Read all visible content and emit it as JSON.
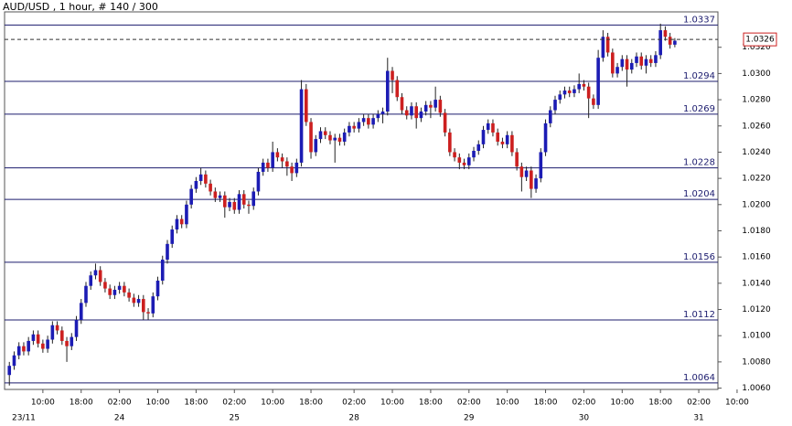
{
  "chart_data": {
    "type": "candlestick",
    "title": "AUD/USD , 1 hour, # 140 / 300",
    "up_color": "#1c1cb4",
    "down_color": "#cc1f1f",
    "level_color": "#1c1c6e",
    "last_color": "#cc1f1f",
    "xlim": [
      -1,
      148
    ],
    "ylim": [
      1.0059,
      1.0347
    ],
    "yticks": [
      {
        "value": 1.006,
        "label": "1.0060"
      },
      {
        "value": 1.008,
        "label": "1.0080"
      },
      {
        "value": 1.01,
        "label": "1.0100"
      },
      {
        "value": 1.012,
        "label": "1.0120"
      },
      {
        "value": 1.014,
        "label": "1.0140"
      },
      {
        "value": 1.016,
        "label": "1.0160"
      },
      {
        "value": 1.018,
        "label": "1.0180"
      },
      {
        "value": 1.02,
        "label": "1.0200"
      },
      {
        "value": 1.022,
        "label": "1.0220"
      },
      {
        "value": 1.024,
        "label": "1.0240"
      },
      {
        "value": 1.026,
        "label": "1.0260"
      },
      {
        "value": 1.028,
        "label": "1.0280"
      },
      {
        "value": 1.03,
        "label": "1.0300"
      },
      {
        "value": 1.032,
        "label": "1.0320"
      }
    ],
    "xticks": [
      {
        "value": 7,
        "label": "10:00"
      },
      {
        "value": 15,
        "label": "18:00"
      },
      {
        "value": 23,
        "label": "02:00"
      },
      {
        "value": 31,
        "label": "10:00"
      },
      {
        "value": 39,
        "label": "18:00"
      },
      {
        "value": 47,
        "label": "02:00"
      },
      {
        "value": 55,
        "label": "10:00"
      },
      {
        "value": 63,
        "label": "18:00"
      },
      {
        "value": 72,
        "label": "02:00"
      },
      {
        "value": 80,
        "label": "10:00"
      },
      {
        "value": 88,
        "label": "18:00"
      },
      {
        "value": 96,
        "label": "02:00"
      },
      {
        "value": 104,
        "label": "10:00"
      },
      {
        "value": 112,
        "label": "18:00"
      },
      {
        "value": 120,
        "label": "02:00"
      },
      {
        "value": 128,
        "label": "10:00"
      },
      {
        "value": 136,
        "label": "18:00"
      },
      {
        "value": 144,
        "label": "02:00"
      },
      {
        "value": 152,
        "label": "10:00"
      }
    ],
    "date_ticks": [
      {
        "value": 3,
        "label": "23/11"
      },
      {
        "value": 23,
        "label": "24"
      },
      {
        "value": 47,
        "label": "25"
      },
      {
        "value": 72,
        "label": "28"
      },
      {
        "value": 96,
        "label": "29"
      },
      {
        "value": 120,
        "label": "30"
      },
      {
        "value": 144,
        "label": "31"
      }
    ],
    "levels": [
      1.0337,
      1.0294,
      1.0269,
      1.0228,
      1.0204,
      1.0156,
      1.0112,
      1.0064
    ],
    "last_price": 1.0326,
    "x": [
      0,
      1,
      2,
      3,
      4,
      5,
      6,
      7,
      8,
      9,
      10,
      11,
      12,
      13,
      14,
      15,
      16,
      17,
      18,
      19,
      20,
      21,
      22,
      23,
      24,
      25,
      26,
      27,
      28,
      29,
      30,
      31,
      32,
      33,
      34,
      35,
      36,
      37,
      38,
      39,
      40,
      41,
      42,
      43,
      44,
      45,
      46,
      47,
      48,
      49,
      50,
      51,
      52,
      53,
      54,
      55,
      56,
      57,
      58,
      59,
      60,
      61,
      62,
      63,
      64,
      65,
      66,
      67,
      68,
      69,
      70,
      71,
      72,
      73,
      74,
      75,
      76,
      77,
      78,
      79,
      80,
      81,
      82,
      83,
      84,
      85,
      86,
      87,
      88,
      89,
      90,
      91,
      92,
      93,
      94,
      95,
      96,
      97,
      98,
      99,
      100,
      101,
      102,
      103,
      104,
      105,
      106,
      107,
      108,
      109,
      110,
      111,
      112,
      113,
      114,
      115,
      116,
      117,
      118,
      119,
      120,
      121,
      122,
      123,
      124,
      125,
      126,
      127,
      128,
      129,
      130,
      131,
      132,
      133,
      134,
      135,
      136,
      137,
      138,
      139
    ],
    "open": [
      1.007,
      1.0077,
      1.0085,
      1.0092,
      1.0088,
      1.0096,
      1.0101,
      1.0094,
      1.009,
      1.0097,
      1.0108,
      1.0104,
      1.0096,
      1.0092,
      1.0099,
      1.0112,
      1.0125,
      1.0138,
      1.0146,
      1.015,
      1.0141,
      1.0136,
      1.0131,
      1.0135,
      1.0138,
      1.0133,
      1.0129,
      1.0125,
      1.0128,
      1.0118,
      1.0117,
      1.013,
      1.0142,
      1.0158,
      1.017,
      1.0181,
      1.0189,
      1.0185,
      1.02,
      1.0212,
      1.0218,
      1.0223,
      1.0216,
      1.021,
      1.0205,
      1.0207,
      1.0198,
      1.0202,
      1.0196,
      1.0208,
      1.02,
      1.0199,
      1.021,
      1.0225,
      1.0232,
      1.0228,
      1.024,
      1.0236,
      1.0233,
      1.0229,
      1.0224,
      1.0232,
      1.0288,
      1.0263,
      1.024,
      1.025,
      1.0256,
      1.0253,
      1.0249,
      1.0251,
      1.0248,
      1.0255,
      1.026,
      1.0258,
      1.0263,
      1.0266,
      1.0261,
      1.0266,
      1.0269,
      1.0271,
      1.0302,
      1.0295,
      1.0282,
      1.0272,
      1.0268,
      1.0275,
      1.0266,
      1.0271,
      1.0276,
      1.0274,
      1.028,
      1.027,
      1.0255,
      1.024,
      1.0236,
      1.0232,
      1.023,
      1.0236,
      1.0241,
      1.0246,
      1.0257,
      1.0262,
      1.0255,
      1.0248,
      1.0246,
      1.0253,
      1.024,
      1.0229,
      1.0221,
      1.0226,
      1.0212,
      1.022,
      1.024,
      1.0262,
      1.0272,
      1.028,
      1.0284,
      1.0287,
      1.0285,
      1.0288,
      1.0292,
      1.029,
      1.0281,
      1.0276,
      1.0312,
      1.0328,
      1.0316,
      1.03,
      1.0305,
      1.0311,
      1.0303,
      1.0308,
      1.0313,
      1.0306,
      1.0311,
      1.0308,
      1.0314,
      1.0333,
      1.0328,
      1.0322
    ],
    "high": [
      1.008,
      1.0088,
      1.0095,
      1.0095,
      1.0099,
      1.0104,
      1.0104,
      1.0097,
      1.01,
      1.0111,
      1.0111,
      1.0107,
      1.0099,
      1.0102,
      1.0115,
      1.0128,
      1.0141,
      1.0149,
      1.0155,
      1.0153,
      1.0144,
      1.0139,
      1.0138,
      1.0141,
      1.0141,
      1.0136,
      1.0132,
      1.0131,
      1.0131,
      1.0121,
      1.0133,
      1.0145,
      1.0161,
      1.0173,
      1.0184,
      1.0192,
      1.0192,
      1.0203,
      1.0215,
      1.0221,
      1.0228,
      1.0226,
      1.0219,
      1.0213,
      1.021,
      1.021,
      1.0205,
      1.0205,
      1.0211,
      1.0211,
      1.0203,
      1.0213,
      1.0228,
      1.0235,
      1.0235,
      1.0248,
      1.0243,
      1.0239,
      1.0236,
      1.0232,
      1.0235,
      1.0295,
      1.0292,
      1.0266,
      1.0253,
      1.0259,
      1.0259,
      1.0256,
      1.0254,
      1.0254,
      1.0258,
      1.0263,
      1.0263,
      1.0266,
      1.0269,
      1.0269,
      1.0269,
      1.0272,
      1.0274,
      1.0312,
      1.0305,
      1.0298,
      1.0285,
      1.0275,
      1.0278,
      1.0278,
      1.0274,
      1.0279,
      1.0279,
      1.029,
      1.0283,
      1.0273,
      1.0258,
      1.0243,
      1.0239,
      1.0235,
      1.0239,
      1.0244,
      1.0249,
      1.026,
      1.0265,
      1.0265,
      1.0258,
      1.0251,
      1.0256,
      1.0256,
      1.0243,
      1.0232,
      1.0229,
      1.0229,
      1.0223,
      1.0243,
      1.0265,
      1.0275,
      1.0283,
      1.0287,
      1.029,
      1.029,
      1.0291,
      1.03,
      1.0295,
      1.0293,
      1.0284,
      1.0318,
      1.0333,
      1.0331,
      1.0319,
      1.0308,
      1.0314,
      1.0314,
      1.0311,
      1.0316,
      1.0316,
      1.0314,
      1.0314,
      1.0317,
      1.0338,
      1.0336,
      1.0331,
      1.0327
    ],
    "low": [
      1.0062,
      1.0074,
      1.0082,
      1.0085,
      1.0085,
      1.0093,
      1.0091,
      1.0087,
      1.0087,
      1.0094,
      1.0101,
      1.0093,
      1.008,
      1.0089,
      1.0096,
      1.0109,
      1.0122,
      1.0135,
      1.0143,
      1.0138,
      1.0133,
      1.0128,
      1.0128,
      1.0132,
      1.013,
      1.0126,
      1.0122,
      1.0122,
      1.0112,
      1.0112,
      1.0114,
      1.0127,
      1.0139,
      1.0155,
      1.0167,
      1.0178,
      1.0182,
      1.0182,
      1.0197,
      1.0209,
      1.0215,
      1.0213,
      1.0207,
      1.0202,
      1.0202,
      1.019,
      1.0195,
      1.0193,
      1.0193,
      1.0197,
      1.0193,
      1.0196,
      1.0207,
      1.0222,
      1.0225,
      1.0225,
      1.0233,
      1.0228,
      1.0222,
      1.0218,
      1.0221,
      1.0229,
      1.026,
      1.0235,
      1.0237,
      1.0247,
      1.025,
      1.0246,
      1.0232,
      1.0245,
      1.0245,
      1.0252,
      1.0255,
      1.0255,
      1.026,
      1.0258,
      1.0258,
      1.0263,
      1.0262,
      1.0268,
      1.0285,
      1.0279,
      1.0269,
      1.0265,
      1.0265,
      1.0258,
      1.0263,
      1.0268,
      1.0266,
      1.0271,
      1.0267,
      1.0252,
      1.0237,
      1.0233,
      1.0227,
      1.0227,
      1.0227,
      1.0233,
      1.0238,
      1.0243,
      1.0254,
      1.0252,
      1.0245,
      1.0243,
      1.0243,
      1.0237,
      1.0226,
      1.021,
      1.0218,
      1.0205,
      1.0209,
      1.0217,
      1.0237,
      1.0259,
      1.0269,
      1.0277,
      1.0281,
      1.0282,
      1.0282,
      1.0285,
      1.0287,
      1.0266,
      1.0273,
      1.0273,
      1.0309,
      1.0313,
      1.0297,
      1.0297,
      1.0302,
      1.029,
      1.03,
      1.0305,
      1.0303,
      1.03,
      1.0305,
      1.0305,
      1.0311,
      1.0325,
      1.0319,
      1.032
    ],
    "close": [
      1.0077,
      1.0085,
      1.0092,
      1.0088,
      1.0096,
      1.0101,
      1.0094,
      1.009,
      1.0097,
      1.0108,
      1.0104,
      1.0096,
      1.0092,
      1.0099,
      1.0112,
      1.0125,
      1.0138,
      1.0146,
      1.015,
      1.0141,
      1.0136,
      1.0131,
      1.0135,
      1.0138,
      1.0133,
      1.0129,
      1.0125,
      1.0128,
      1.0118,
      1.0117,
      1.013,
      1.0142,
      1.0158,
      1.017,
      1.0181,
      1.0189,
      1.0185,
      1.02,
      1.0212,
      1.0218,
      1.0223,
      1.0216,
      1.021,
      1.0205,
      1.0207,
      1.0198,
      1.0202,
      1.0196,
      1.0208,
      1.02,
      1.0199,
      1.021,
      1.0225,
      1.0232,
      1.0228,
      1.024,
      1.0236,
      1.0233,
      1.0229,
      1.0224,
      1.0232,
      1.0288,
      1.0263,
      1.024,
      1.025,
      1.0256,
      1.0253,
      1.0249,
      1.0251,
      1.0248,
      1.0255,
      1.026,
      1.0258,
      1.0263,
      1.0266,
      1.0261,
      1.0266,
      1.0269,
      1.0271,
      1.0302,
      1.0295,
      1.0282,
      1.0272,
      1.0268,
      1.0275,
      1.0266,
      1.0271,
      1.0276,
      1.0274,
      1.028,
      1.027,
      1.0255,
      1.024,
      1.0236,
      1.0232,
      1.023,
      1.0236,
      1.0241,
      1.0246,
      1.0257,
      1.0262,
      1.0255,
      1.0248,
      1.0246,
      1.0253,
      1.024,
      1.0229,
      1.0221,
      1.0226,
      1.0212,
      1.022,
      1.024,
      1.0262,
      1.0272,
      1.028,
      1.0284,
      1.0287,
      1.0285,
      1.0288,
      1.0292,
      1.029,
      1.0281,
      1.0276,
      1.0312,
      1.0328,
      1.0316,
      1.03,
      1.0305,
      1.0311,
      1.0303,
      1.0308,
      1.0313,
      1.0306,
      1.0311,
      1.0308,
      1.0314,
      1.0333,
      1.0328,
      1.0322,
      1.0325
    ]
  }
}
